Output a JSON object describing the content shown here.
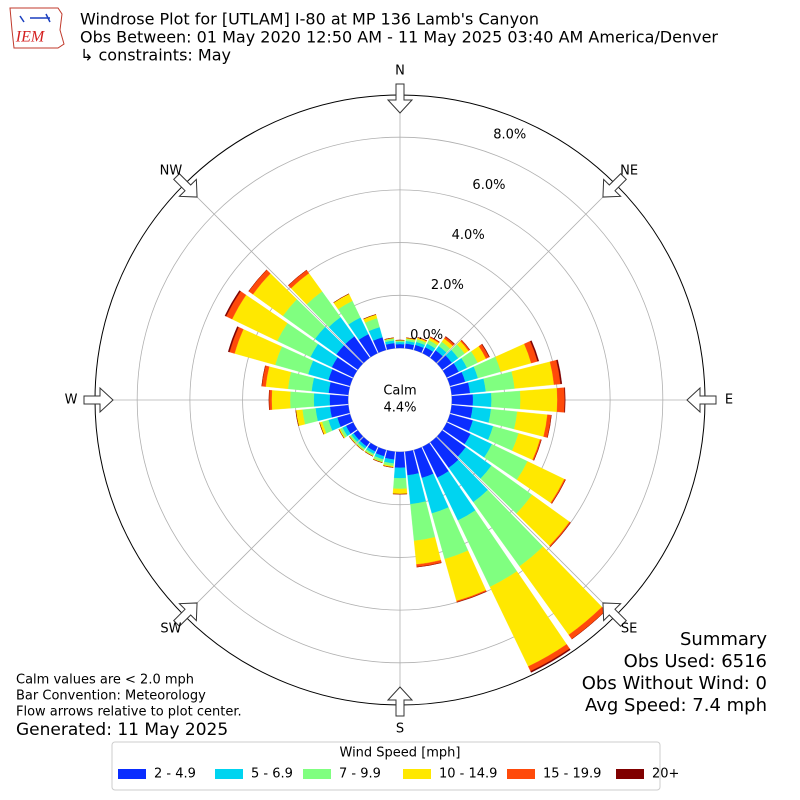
{
  "chart_data": {
    "type": "windrose",
    "title_lines": [
      "Windrose Plot for [UTLAM] I-80 at MP 136 Lamb's Canyon",
      "Obs Between: 01 May 2020 12:50 AM - 11 May 2025 03:40 AM America/Denver",
      "↳ constraints: May"
    ],
    "logo_text": "IEM",
    "x": [
      0,
      10,
      20,
      30,
      40,
      50,
      60,
      70,
      80,
      90,
      100,
      110,
      120,
      130,
      140,
      150,
      160,
      170,
      180,
      190,
      200,
      210,
      220,
      230,
      240,
      250,
      260,
      270,
      280,
      290,
      300,
      310,
      320,
      330,
      340,
      350
    ],
    "xticks": [
      {
        "value": 0,
        "label": "N"
      },
      {
        "value": 45,
        "label": "NE"
      },
      {
        "value": 90,
        "label": "E"
      },
      {
        "value": 135,
        "label": "SE"
      },
      {
        "value": 180,
        "label": "S"
      },
      {
        "value": 225,
        "label": "SW"
      },
      {
        "value": 270,
        "label": "W"
      },
      {
        "value": 315,
        "label": "NW"
      }
    ],
    "ylim": [
      0,
      9.6
    ],
    "yticks": [
      {
        "value": 0,
        "label": "0.0%"
      },
      {
        "value": 2,
        "label": "2.0%"
      },
      {
        "value": 4,
        "label": "4.0%"
      },
      {
        "value": 6,
        "label": "6.0%"
      },
      {
        "value": 8,
        "label": "8.0%"
      }
    ],
    "grid": true,
    "calm_label": "Calm",
    "calm_value": 4.4,
    "calm_value_label": "4.4%",
    "legend_title": "Wind Speed [mph]",
    "series": [
      {
        "name": "2 - 4.9",
        "color": "#0a2dff",
        "values": [
          0.15,
          0.18,
          0.2,
          0.25,
          0.35,
          0.45,
          0.5,
          0.6,
          0.7,
          0.8,
          0.8,
          0.9,
          1.0,
          1.1,
          1.2,
          1.3,
          1.1,
          0.9,
          0.6,
          0.3,
          0.25,
          0.2,
          0.2,
          0.2,
          0.3,
          0.5,
          0.7,
          0.7,
          0.75,
          0.85,
          0.9,
          1.0,
          1.0,
          0.8,
          0.5,
          0.2
        ]
      },
      {
        "name": "5 - 6.9",
        "color": "#00d4f0",
        "values": [
          0.08,
          0.1,
          0.12,
          0.15,
          0.2,
          0.3,
          0.35,
          0.5,
          0.6,
          0.7,
          0.7,
          0.8,
          0.9,
          1.2,
          1.6,
          1.8,
          1.4,
          1.1,
          0.4,
          0.15,
          0.12,
          0.1,
          0.1,
          0.1,
          0.15,
          0.35,
          0.55,
          0.6,
          0.65,
          0.8,
          0.9,
          1.0,
          0.9,
          0.7,
          0.4,
          0.1
        ]
      },
      {
        "name": "7 - 9.9",
        "color": "#80ff80",
        "values": [
          0.05,
          0.08,
          0.1,
          0.15,
          0.2,
          0.3,
          0.45,
          0.9,
          1.1,
          1.1,
          1.0,
          1.0,
          1.5,
          1.9,
          3.0,
          2.8,
          1.8,
          1.4,
          0.4,
          0.1,
          0.1,
          0.07,
          0.07,
          0.07,
          0.1,
          0.25,
          0.5,
          0.9,
          0.9,
          1.3,
          1.4,
          1.5,
          1.2,
          0.7,
          0.35,
          0.07
        ]
      },
      {
        "name": "10 - 14.9",
        "color": "#ffe800",
        "values": [
          0.02,
          0.04,
          0.06,
          0.1,
          0.15,
          0.18,
          0.35,
          1.2,
          1.5,
          1.4,
          1.15,
          0.85,
          1.55,
          1.75,
          3.2,
          3.35,
          1.65,
          0.9,
          0.2,
          0.05,
          0.03,
          0.03,
          0.03,
          0.03,
          0.05,
          0.1,
          0.25,
          0.7,
          0.85,
          1.6,
          1.9,
          1.4,
          0.85,
          0.3,
          0.15,
          0.03
        ]
      },
      {
        "name": "15 - 19.9",
        "color": "#ff4a0a",
        "values": [
          0,
          0,
          0.02,
          0.04,
          0.08,
          0.06,
          0.13,
          0.25,
          0.25,
          0.28,
          0.15,
          0.05,
          0.05,
          0.05,
          0.2,
          0.2,
          0.05,
          0.1,
          0,
          0,
          0,
          0,
          0,
          0,
          0,
          0,
          0,
          0.1,
          0.15,
          0.2,
          0.25,
          0.2,
          0.15,
          0,
          0,
          0
        ]
      },
      {
        "name": "20+",
        "color": "#800000",
        "values": [
          0,
          0,
          0,
          0,
          0.02,
          0,
          0.02,
          0.05,
          0.05,
          0.02,
          0,
          0,
          0,
          0,
          0,
          0.05,
          0,
          0,
          0,
          0,
          0,
          0,
          0,
          0,
          0,
          0,
          0,
          0,
          0,
          0.05,
          0.05,
          0,
          0,
          0,
          0,
          0
        ]
      }
    ],
    "summary": [
      "Summary",
      "Obs Used: 6516",
      "Obs Without Wind: 0",
      "Avg Speed: 7.4 mph"
    ],
    "notes": [
      "Calm values are < 2.0 mph",
      "Bar Convention: Meteorology",
      "Flow arrows relative to plot center."
    ],
    "generated": "Generated: 11 May 2025"
  }
}
